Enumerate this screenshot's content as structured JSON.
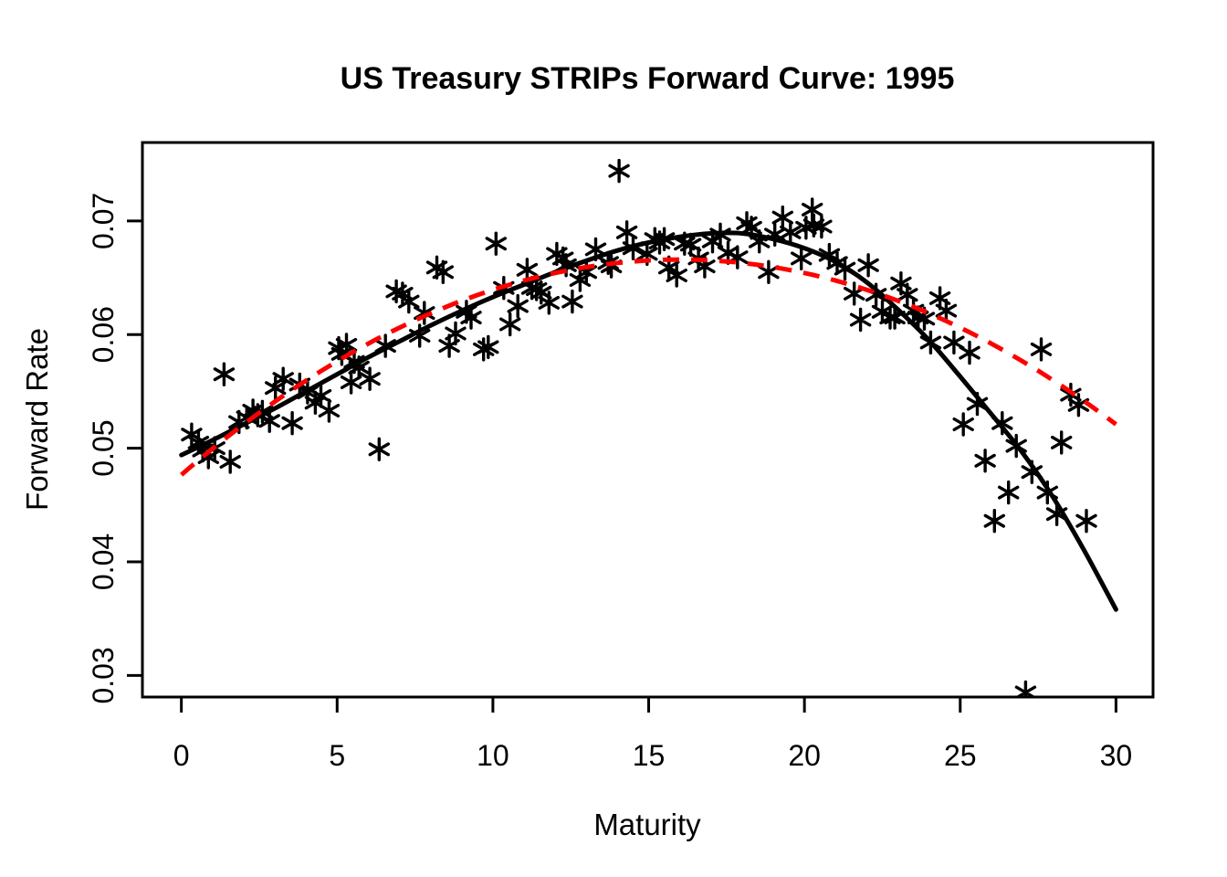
{
  "page": {
    "background": "#FFFFFF"
  },
  "chart_data": {
    "type": "scatter",
    "title": "US Treasury STRIPs Forward Curve: 1995",
    "xlabel": "Maturity",
    "ylabel": "Forward Rate",
    "xlim": [
      -1.25,
      31.19
    ],
    "ylim": [
      0.0281,
      0.0769
    ],
    "grid": false,
    "legend": "none",
    "x_ticks": {
      "values": [
        0,
        5,
        10,
        15,
        20,
        25,
        30
      ],
      "labels": [
        "0",
        "5",
        "10",
        "15",
        "20",
        "25",
        "30"
      ]
    },
    "y_ticks": {
      "values": [
        0.03,
        0.04,
        0.05,
        0.06,
        0.07
      ],
      "labels": [
        "0.03",
        "0.04",
        "0.05",
        "0.06",
        "0.07"
      ]
    },
    "colors": {
      "points": "#000000",
      "spline_fit": "#000000",
      "quadratic_fit": "#FF0000"
    },
    "series": [
      {
        "name": "forward-rate-observations",
        "kind": "scatter",
        "marker": "asterisk",
        "color": "#000000",
        "points": [
          [
            0.33,
            0.0512
          ],
          [
            0.55,
            0.0505
          ],
          [
            0.69,
            0.0498
          ],
          [
            0.87,
            0.0492
          ],
          [
            1.07,
            0.05
          ],
          [
            1.37,
            0.0565
          ],
          [
            1.57,
            0.0488
          ],
          [
            1.85,
            0.0523
          ],
          [
            2.1,
            0.0527
          ],
          [
            2.3,
            0.0533
          ],
          [
            2.45,
            0.0529
          ],
          [
            2.6,
            0.0532
          ],
          [
            2.83,
            0.0524
          ],
          [
            3.02,
            0.0553
          ],
          [
            3.27,
            0.0561
          ],
          [
            3.56,
            0.0522
          ],
          [
            3.8,
            0.0556
          ],
          [
            4.05,
            0.0549
          ],
          [
            4.3,
            0.054
          ],
          [
            4.48,
            0.0546
          ],
          [
            4.74,
            0.0533
          ],
          [
            5.05,
            0.0588
          ],
          [
            5.15,
            0.0583
          ],
          [
            5.3,
            0.0591
          ],
          [
            5.45,
            0.0558
          ],
          [
            5.55,
            0.0576
          ],
          [
            5.7,
            0.0571
          ],
          [
            6.05,
            0.0561
          ],
          [
            6.35,
            0.0499
          ],
          [
            6.55,
            0.059
          ],
          [
            6.9,
            0.0638
          ],
          [
            7.1,
            0.0636
          ],
          [
            7.3,
            0.0629
          ],
          [
            7.65,
            0.0599
          ],
          [
            7.8,
            0.0619
          ],
          [
            8.2,
            0.0659
          ],
          [
            8.4,
            0.0655
          ],
          [
            8.6,
            0.059
          ],
          [
            8.8,
            0.0601
          ],
          [
            9.15,
            0.062
          ],
          [
            9.3,
            0.0615
          ],
          [
            9.7,
            0.0587
          ],
          [
            9.85,
            0.0589
          ],
          [
            10.1,
            0.068
          ],
          [
            10.35,
            0.0641
          ],
          [
            10.55,
            0.0609
          ],
          [
            10.8,
            0.0625
          ],
          [
            11.1,
            0.0657
          ],
          [
            11.25,
            0.0641
          ],
          [
            11.4,
            0.064
          ],
          [
            11.55,
            0.0637
          ],
          [
            11.8,
            0.0628
          ],
          [
            12.05,
            0.0671
          ],
          [
            12.25,
            0.0667
          ],
          [
            12.35,
            0.0661
          ],
          [
            12.55,
            0.0629
          ],
          [
            12.8,
            0.0648
          ],
          [
            13.0,
            0.0655
          ],
          [
            13.3,
            0.0675
          ],
          [
            13.7,
            0.0663
          ],
          [
            13.8,
            0.066
          ],
          [
            14.05,
            0.0744
          ],
          [
            14.3,
            0.069
          ],
          [
            14.5,
            0.0676
          ],
          [
            14.95,
            0.0671
          ],
          [
            15.2,
            0.0684
          ],
          [
            15.35,
            0.0681
          ],
          [
            15.5,
            0.0684
          ],
          [
            15.65,
            0.0659
          ],
          [
            15.9,
            0.0652
          ],
          [
            16.15,
            0.068
          ],
          [
            16.35,
            0.0679
          ],
          [
            16.6,
            0.0667
          ],
          [
            16.8,
            0.066
          ],
          [
            17.05,
            0.0682
          ],
          [
            17.3,
            0.0688
          ],
          [
            17.55,
            0.0672
          ],
          [
            17.85,
            0.0668
          ],
          [
            18.15,
            0.0698
          ],
          [
            18.3,
            0.0694
          ],
          [
            18.55,
            0.0682
          ],
          [
            18.85,
            0.0655
          ],
          [
            19.05,
            0.0688
          ],
          [
            19.3,
            0.0703
          ],
          [
            19.55,
            0.069
          ],
          [
            19.9,
            0.0667
          ],
          [
            20.05,
            0.0694
          ],
          [
            20.25,
            0.071
          ],
          [
            20.3,
            0.0696
          ],
          [
            20.55,
            0.0695
          ],
          [
            20.8,
            0.067
          ],
          [
            21.05,
            0.0663
          ],
          [
            21.3,
            0.0658
          ],
          [
            21.6,
            0.0636
          ],
          [
            21.8,
            0.0613
          ],
          [
            22.05,
            0.0661
          ],
          [
            22.3,
            0.0635
          ],
          [
            22.5,
            0.062
          ],
          [
            22.75,
            0.0615
          ],
          [
            22.9,
            0.0615
          ],
          [
            23.1,
            0.0645
          ],
          [
            23.3,
            0.0635
          ],
          [
            23.5,
            0.0621
          ],
          [
            23.65,
            0.0615
          ],
          [
            23.85,
            0.0614
          ],
          [
            24.05,
            0.0593
          ],
          [
            24.35,
            0.0632
          ],
          [
            24.55,
            0.0621
          ],
          [
            24.8,
            0.0593
          ],
          [
            25.1,
            0.0521
          ],
          [
            25.3,
            0.0584
          ],
          [
            25.55,
            0.0539
          ],
          [
            25.8,
            0.0489
          ],
          [
            26.1,
            0.0436
          ],
          [
            26.35,
            0.0522
          ],
          [
            26.55,
            0.0461
          ],
          [
            26.8,
            0.0502
          ],
          [
            27.1,
            0.0285
          ],
          [
            27.3,
            0.0479
          ],
          [
            27.6,
            0.0587
          ],
          [
            27.8,
            0.0461
          ],
          [
            28.1,
            0.0442
          ],
          [
            28.25,
            0.0505
          ],
          [
            28.55,
            0.0547
          ],
          [
            28.8,
            0.0538
          ],
          [
            29.05,
            0.0436
          ]
        ]
      },
      {
        "name": "spline-fit",
        "kind": "line",
        "style": "solid",
        "color": "#000000",
        "line_width": 5,
        "points": [
          [
            0,
            0.0494
          ],
          [
            1,
            0.0507
          ],
          [
            2,
            0.0521
          ],
          [
            3,
            0.0535
          ],
          [
            4,
            0.055
          ],
          [
            5,
            0.0565
          ],
          [
            6,
            0.058
          ],
          [
            7,
            0.0594
          ],
          [
            8,
            0.0608
          ],
          [
            9,
            0.0621
          ],
          [
            10,
            0.0633
          ],
          [
            11,
            0.0644
          ],
          [
            12,
            0.0655
          ],
          [
            13,
            0.0665
          ],
          [
            14,
            0.0674
          ],
          [
            15,
            0.0681
          ],
          [
            16,
            0.0686
          ],
          [
            17,
            0.0689
          ],
          [
            18,
            0.0689
          ],
          [
            19,
            0.0684
          ],
          [
            20,
            0.0676
          ],
          [
            21,
            0.0664
          ],
          [
            22,
            0.0646
          ],
          [
            23,
            0.0622
          ],
          [
            24,
            0.0595
          ],
          [
            25,
            0.0563
          ],
          [
            26,
            0.053
          ],
          [
            27,
            0.0496
          ],
          [
            28,
            0.0456
          ],
          [
            29,
            0.0409
          ],
          [
            30,
            0.0358
          ]
        ]
      },
      {
        "name": "quadratic-fit",
        "kind": "line",
        "style": "dashed",
        "color": "#FF0000",
        "line_width": 5,
        "dash": [
          18,
          13
        ],
        "quadratic": {
          "vertex_maturity": 16,
          "vertex_rate": 0.0666,
          "coeff": -7.4e-05,
          "rate_at_0": 0.0477,
          "rate_at_30": 0.0521,
          "domain": [
            0,
            30
          ]
        }
      }
    ]
  }
}
